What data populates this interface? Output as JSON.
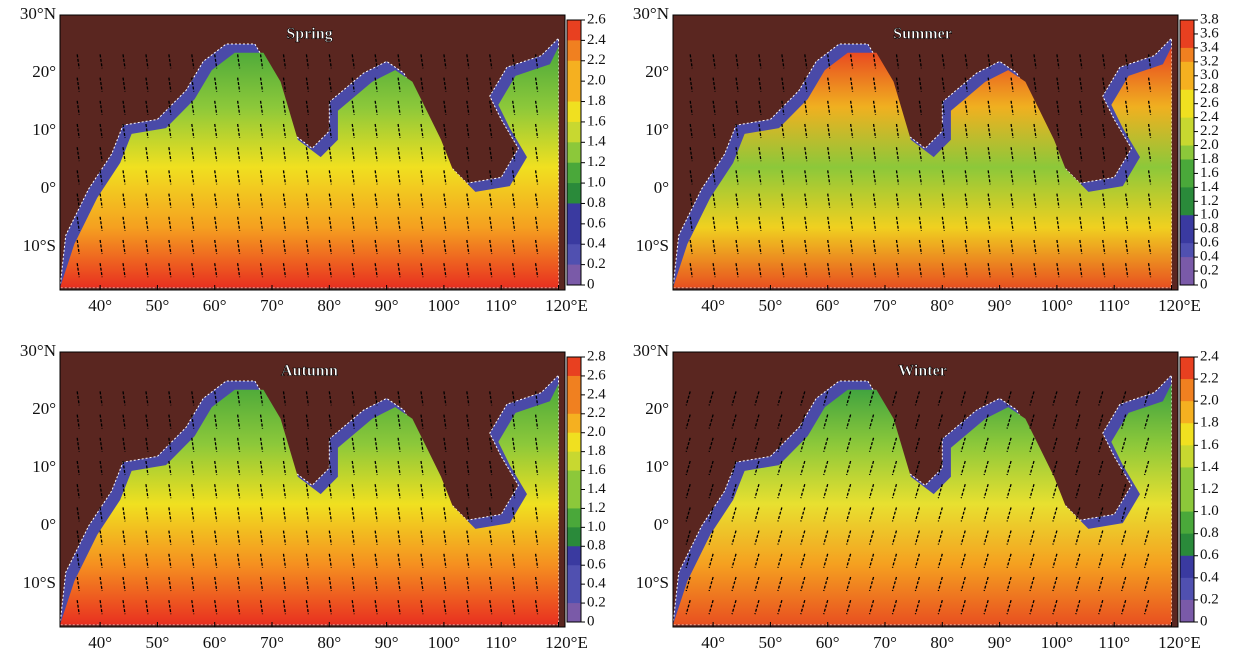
{
  "panels": [
    {
      "title": "Spring",
      "colorbar": [
        "2.6",
        "2.4",
        "2.2",
        "2.0",
        "1.8",
        "1.6",
        "1.4",
        "1.2",
        "1.0",
        "0.8",
        "0.6",
        "0.4",
        "0.2",
        "0"
      ],
      "lat_labels": [
        "30°N",
        "20°",
        "10°",
        "0°",
        "10°S"
      ],
      "lon_labels": [
        "40°",
        "50°",
        "60°",
        "70°",
        "80°",
        "90°",
        "100°",
        "110°",
        "120°E"
      ]
    },
    {
      "title": "Summer",
      "colorbar": [
        "3.8",
        "3.6",
        "3.4",
        "3.2",
        "3.0",
        "2.8",
        "2.6",
        "2.4",
        "2.2",
        "2.0",
        "1.8",
        "1.6",
        "1.4",
        "1.2",
        "1.0",
        "0.8",
        "0.6",
        "0.4",
        "0.2",
        "0"
      ],
      "lat_labels": [
        "30°N",
        "20°",
        "10°",
        "0°",
        "10°S"
      ],
      "lon_labels": [
        "40°",
        "50°",
        "60°",
        "70°",
        "80°",
        "90°",
        "100°",
        "110°",
        "120°E"
      ]
    },
    {
      "title": "Autumn",
      "colorbar": [
        "2.8",
        "2.6",
        "2.4",
        "2.2",
        "2.0",
        "1.8",
        "1.6",
        "1.4",
        "1.2",
        "1.0",
        "0.8",
        "0.6",
        "0.4",
        "0.2",
        "0"
      ],
      "lat_labels": [
        "30°N",
        "20°",
        "10°",
        "0°",
        "10°S"
      ],
      "lon_labels": [
        "40°",
        "50°",
        "60°",
        "70°",
        "80°",
        "90°",
        "100°",
        "110°",
        "120°E"
      ]
    },
    {
      "title": "Winter",
      "colorbar": [
        "2.4",
        "2.2",
        "2.0",
        "1.8",
        "1.6",
        "1.4",
        "1.2",
        "1.0",
        "0.8",
        "0.6",
        "0.4",
        "0.2",
        "0"
      ],
      "lat_labels": [
        "30°N",
        "20°",
        "10°",
        "0°",
        "10°S"
      ],
      "lon_labels": [
        "40°",
        "50°",
        "60°",
        "70°",
        "80°",
        "90°",
        "100°",
        "110°",
        "120°E"
      ]
    }
  ]
}
